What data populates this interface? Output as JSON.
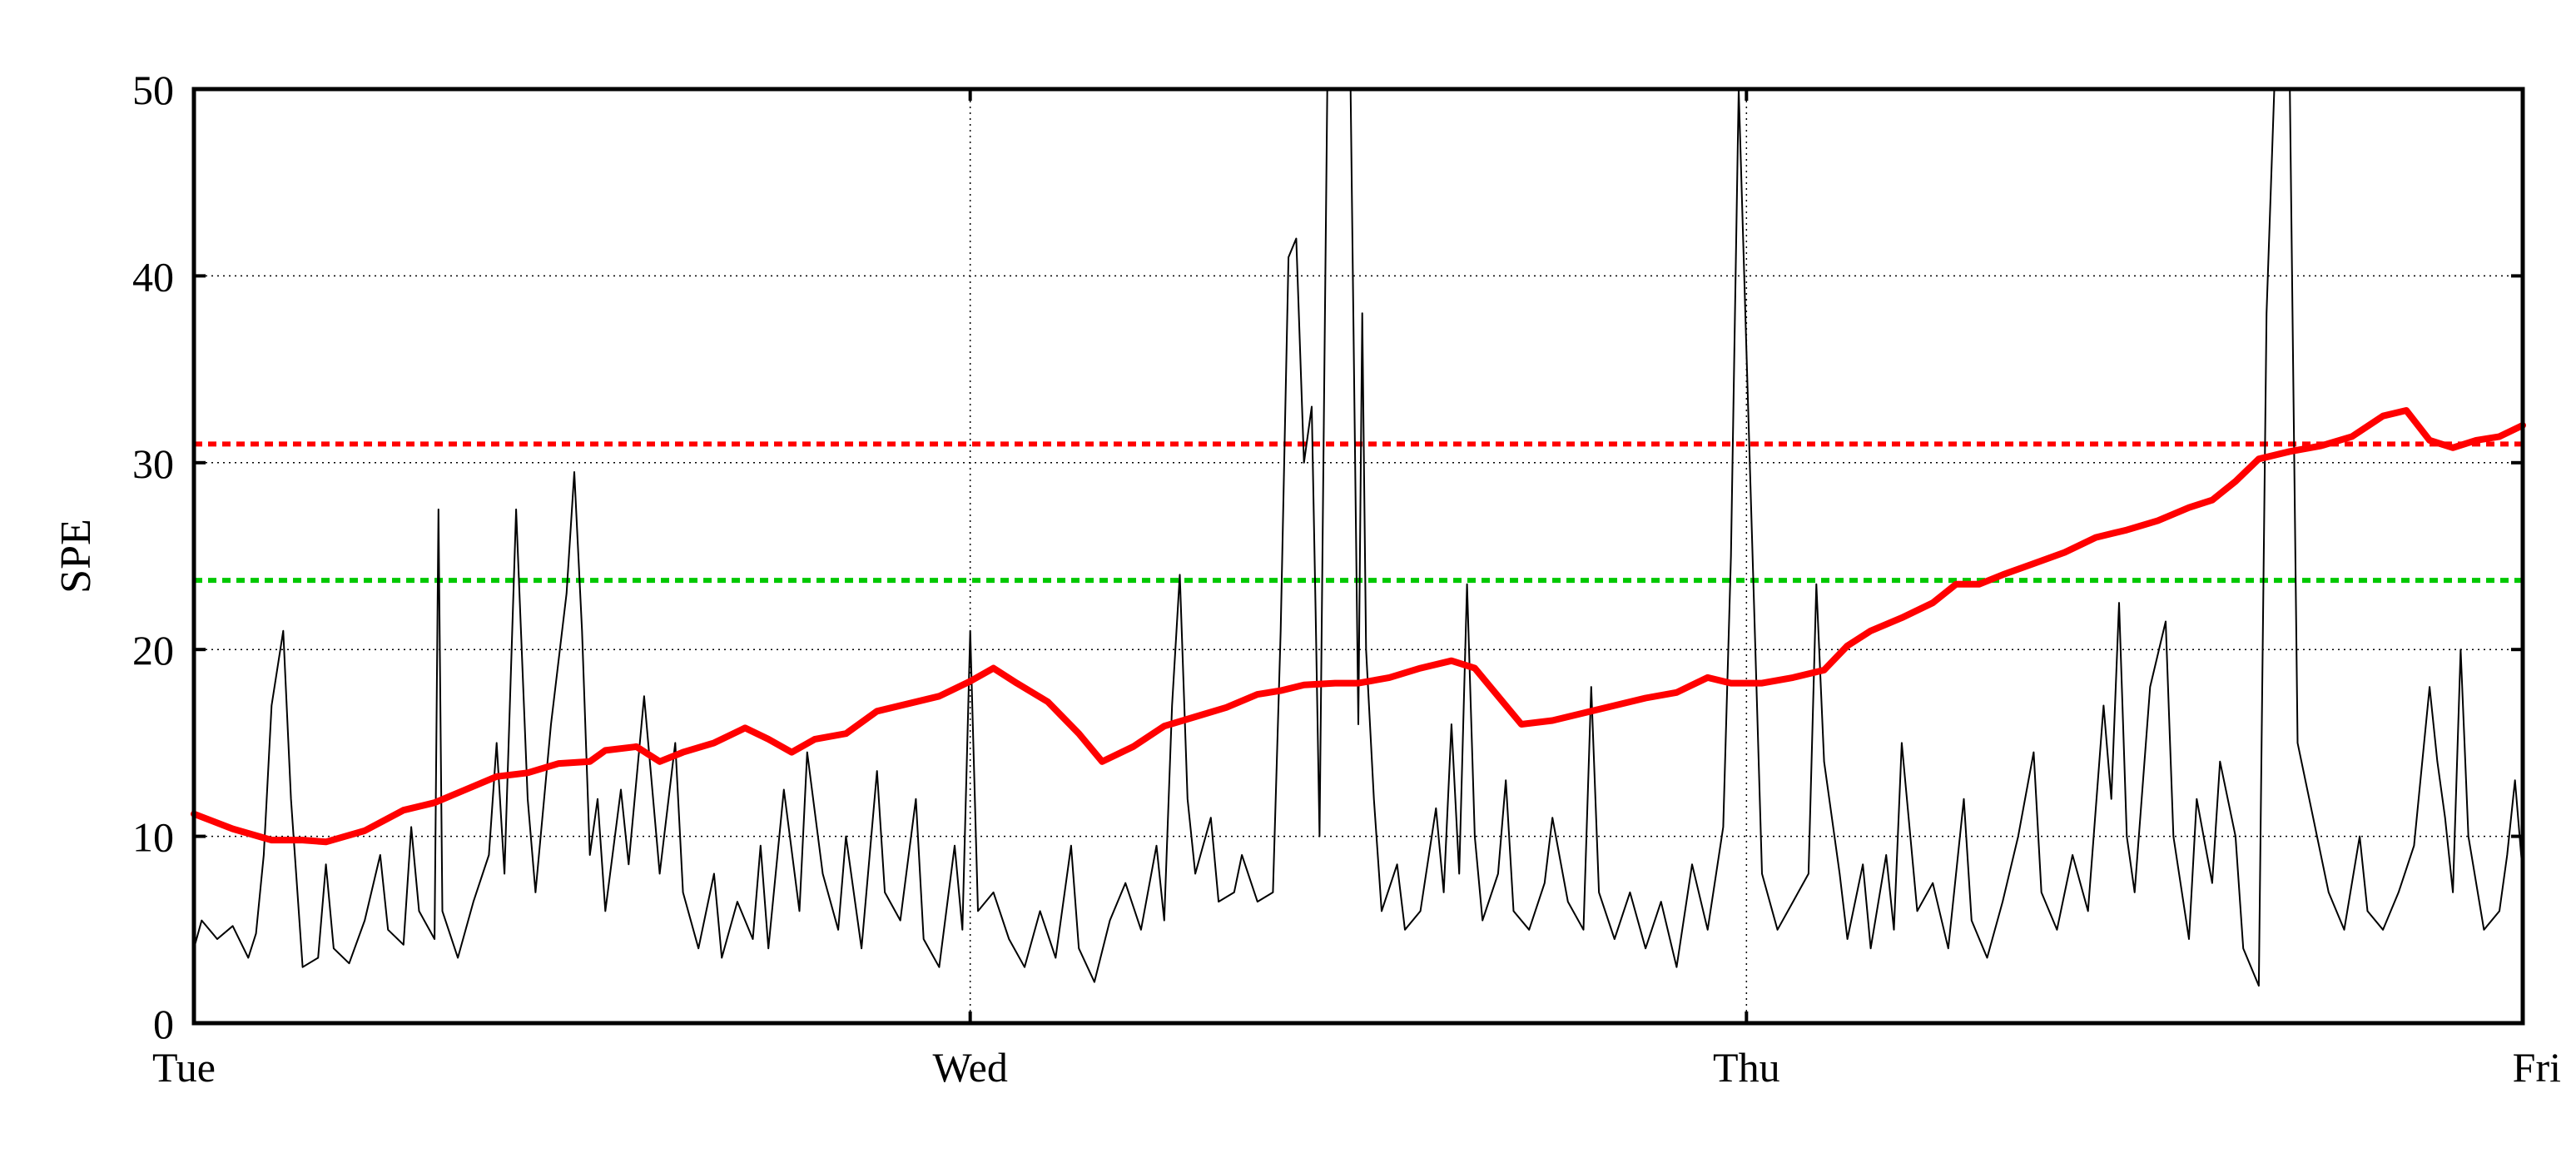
{
  "chart_data": {
    "type": "line",
    "title": "",
    "xlabel": "",
    "ylabel": "SPE",
    "xlim": [
      0,
      3
    ],
    "ylim": [
      0,
      50
    ],
    "x_ticks": [
      {
        "value": 0,
        "label": "Tue"
      },
      {
        "value": 1,
        "label": "Wed"
      },
      {
        "value": 2,
        "label": "Thu"
      },
      {
        "value": 3,
        "label": "Fri"
      }
    ],
    "y_ticks": [
      0,
      10,
      20,
      30,
      40,
      50
    ],
    "grid": "dotted",
    "thresholds": [
      {
        "y": 31.0,
        "color": "#ff0000",
        "style": "dashed"
      },
      {
        "y": 23.7,
        "color": "#00c800",
        "style": "dashed"
      }
    ],
    "series": [
      {
        "color": "#000000",
        "style": "thin",
        "points": [
          [
            0.0,
            4.0
          ],
          [
            0.01,
            5.5
          ],
          [
            0.03,
            4.5
          ],
          [
            0.05,
            5.2
          ],
          [
            0.07,
            3.5
          ],
          [
            0.08,
            4.8
          ],
          [
            0.09,
            9.0
          ],
          [
            0.1,
            17.0
          ],
          [
            0.115,
            21.0
          ],
          [
            0.125,
            12.0
          ],
          [
            0.14,
            3.0
          ],
          [
            0.16,
            3.5
          ],
          [
            0.17,
            8.5
          ],
          [
            0.18,
            4.0
          ],
          [
            0.2,
            3.2
          ],
          [
            0.22,
            5.5
          ],
          [
            0.24,
            9.0
          ],
          [
            0.25,
            5.0
          ],
          [
            0.27,
            4.2
          ],
          [
            0.28,
            10.5
          ],
          [
            0.29,
            6.0
          ],
          [
            0.31,
            4.5
          ],
          [
            0.315,
            27.5
          ],
          [
            0.32,
            6.0
          ],
          [
            0.34,
            3.5
          ],
          [
            0.36,
            6.5
          ],
          [
            0.38,
            9.0
          ],
          [
            0.39,
            15.0
          ],
          [
            0.4,
            8.0
          ],
          [
            0.415,
            27.5
          ],
          [
            0.43,
            12.0
          ],
          [
            0.44,
            7.0
          ],
          [
            0.46,
            16.0
          ],
          [
            0.48,
            23.0
          ],
          [
            0.49,
            29.5
          ],
          [
            0.5,
            21.0
          ],
          [
            0.51,
            9.0
          ],
          [
            0.52,
            12.0
          ],
          [
            0.53,
            6.0
          ],
          [
            0.55,
            12.5
          ],
          [
            0.56,
            8.5
          ],
          [
            0.58,
            17.5
          ],
          [
            0.6,
            8.0
          ],
          [
            0.62,
            15.0
          ],
          [
            0.63,
            7.0
          ],
          [
            0.65,
            4.0
          ],
          [
            0.67,
            8.0
          ],
          [
            0.68,
            3.5
          ],
          [
            0.7,
            6.5
          ],
          [
            0.72,
            4.5
          ],
          [
            0.73,
            9.5
          ],
          [
            0.74,
            4.0
          ],
          [
            0.76,
            12.5
          ],
          [
            0.78,
            6.0
          ],
          [
            0.79,
            14.5
          ],
          [
            0.81,
            8.0
          ],
          [
            0.83,
            5.0
          ],
          [
            0.84,
            10.0
          ],
          [
            0.86,
            4.0
          ],
          [
            0.88,
            13.5
          ],
          [
            0.89,
            7.0
          ],
          [
            0.91,
            5.5
          ],
          [
            0.93,
            12.0
          ],
          [
            0.94,
            4.5
          ],
          [
            0.96,
            3.0
          ],
          [
            0.98,
            9.5
          ],
          [
            0.99,
            5.0
          ],
          [
            1.0,
            21.0
          ],
          [
            1.01,
            6.0
          ],
          [
            1.03,
            7.0
          ],
          [
            1.05,
            4.5
          ],
          [
            1.07,
            3.0
          ],
          [
            1.09,
            6.0
          ],
          [
            1.11,
            3.5
          ],
          [
            1.13,
            9.5
          ],
          [
            1.14,
            4.0
          ],
          [
            1.16,
            2.2
          ],
          [
            1.18,
            5.5
          ],
          [
            1.2,
            7.5
          ],
          [
            1.22,
            5.0
          ],
          [
            1.24,
            9.5
          ],
          [
            1.25,
            5.5
          ],
          [
            1.26,
            17.0
          ],
          [
            1.27,
            24.0
          ],
          [
            1.28,
            12.0
          ],
          [
            1.29,
            8.0
          ],
          [
            1.31,
            11.0
          ],
          [
            1.32,
            6.5
          ],
          [
            1.34,
            7.0
          ],
          [
            1.35,
            9.0
          ],
          [
            1.37,
            6.5
          ],
          [
            1.39,
            7.0
          ],
          [
            1.4,
            21.0
          ],
          [
            1.41,
            41.0
          ],
          [
            1.42,
            42.0
          ],
          [
            1.43,
            30.0
          ],
          [
            1.44,
            33.0
          ],
          [
            1.445,
            22.0
          ],
          [
            1.45,
            10.0
          ],
          [
            1.46,
            50.0
          ],
          [
            1.48,
            50.0
          ],
          [
            1.49,
            50.0
          ],
          [
            1.5,
            16.0
          ],
          [
            1.505,
            38.0
          ],
          [
            1.51,
            20.0
          ],
          [
            1.52,
            12.0
          ],
          [
            1.53,
            6.0
          ],
          [
            1.55,
            8.5
          ],
          [
            1.56,
            5.0
          ],
          [
            1.58,
            6.0
          ],
          [
            1.6,
            11.5
          ],
          [
            1.61,
            7.0
          ],
          [
            1.62,
            16.0
          ],
          [
            1.63,
            8.0
          ],
          [
            1.64,
            23.5
          ],
          [
            1.65,
            10.0
          ],
          [
            1.66,
            5.5
          ],
          [
            1.68,
            8.0
          ],
          [
            1.69,
            13.0
          ],
          [
            1.7,
            6.0
          ],
          [
            1.72,
            5.0
          ],
          [
            1.74,
            7.5
          ],
          [
            1.75,
            11.0
          ],
          [
            1.77,
            6.5
          ],
          [
            1.79,
            5.0
          ],
          [
            1.8,
            18.0
          ],
          [
            1.81,
            7.0
          ],
          [
            1.83,
            4.5
          ],
          [
            1.85,
            7.0
          ],
          [
            1.87,
            4.0
          ],
          [
            1.89,
            6.5
          ],
          [
            1.91,
            3.0
          ],
          [
            1.93,
            8.5
          ],
          [
            1.95,
            5.0
          ],
          [
            1.97,
            10.5
          ],
          [
            1.98,
            25.0
          ],
          [
            1.99,
            50.0
          ],
          [
            2.0,
            36.0
          ],
          [
            2.01,
            22.0
          ],
          [
            2.02,
            8.0
          ],
          [
            2.04,
            5.0
          ],
          [
            2.06,
            6.5
          ],
          [
            2.08,
            8.0
          ],
          [
            2.09,
            23.5
          ],
          [
            2.1,
            14.0
          ],
          [
            2.12,
            8.0
          ],
          [
            2.13,
            4.5
          ],
          [
            2.15,
            8.5
          ],
          [
            2.16,
            4.0
          ],
          [
            2.18,
            9.0
          ],
          [
            2.19,
            5.0
          ],
          [
            2.2,
            15.0
          ],
          [
            2.22,
            6.0
          ],
          [
            2.24,
            7.5
          ],
          [
            2.26,
            4.0
          ],
          [
            2.28,
            12.0
          ],
          [
            2.29,
            5.5
          ],
          [
            2.31,
            3.5
          ],
          [
            2.33,
            6.5
          ],
          [
            2.35,
            10.0
          ],
          [
            2.37,
            14.5
          ],
          [
            2.38,
            7.0
          ],
          [
            2.4,
            5.0
          ],
          [
            2.42,
            9.0
          ],
          [
            2.44,
            6.0
          ],
          [
            2.46,
            17.0
          ],
          [
            2.47,
            12.0
          ],
          [
            2.48,
            22.5
          ],
          [
            2.49,
            10.0
          ],
          [
            2.5,
            7.0
          ],
          [
            2.52,
            18.0
          ],
          [
            2.54,
            21.5
          ],
          [
            2.55,
            10.0
          ],
          [
            2.57,
            4.5
          ],
          [
            2.58,
            12.0
          ],
          [
            2.6,
            7.5
          ],
          [
            2.61,
            14.0
          ],
          [
            2.63,
            10.0
          ],
          [
            2.64,
            4.0
          ],
          [
            2.66,
            2.0
          ],
          [
            2.67,
            38.0
          ],
          [
            2.68,
            50.0
          ],
          [
            2.7,
            50.0
          ],
          [
            2.71,
            15.0
          ],
          [
            2.73,
            11.0
          ],
          [
            2.75,
            7.0
          ],
          [
            2.77,
            5.0
          ],
          [
            2.79,
            10.0
          ],
          [
            2.8,
            6.0
          ],
          [
            2.82,
            5.0
          ],
          [
            2.84,
            7.0
          ],
          [
            2.86,
            9.5
          ],
          [
            2.88,
            18.0
          ],
          [
            2.89,
            14.0
          ],
          [
            2.9,
            11.0
          ],
          [
            2.91,
            7.0
          ],
          [
            2.92,
            20.0
          ],
          [
            2.93,
            10.0
          ],
          [
            2.95,
            5.0
          ],
          [
            2.97,
            6.0
          ],
          [
            2.98,
            9.0
          ],
          [
            2.99,
            13.0
          ],
          [
            3.0,
            8.0
          ]
        ]
      },
      {
        "color": "#ff0000",
        "style": "thick",
        "points": [
          [
            0.0,
            11.2
          ],
          [
            0.05,
            10.4
          ],
          [
            0.1,
            9.8
          ],
          [
            0.14,
            9.8
          ],
          [
            0.17,
            9.7
          ],
          [
            0.22,
            10.3
          ],
          [
            0.27,
            11.4
          ],
          [
            0.31,
            11.8
          ],
          [
            0.35,
            12.5
          ],
          [
            0.39,
            13.2
          ],
          [
            0.43,
            13.4
          ],
          [
            0.47,
            13.9
          ],
          [
            0.51,
            14.0
          ],
          [
            0.53,
            14.6
          ],
          [
            0.57,
            14.8
          ],
          [
            0.6,
            14.0
          ],
          [
            0.63,
            14.5
          ],
          [
            0.67,
            15.0
          ],
          [
            0.71,
            15.8
          ],
          [
            0.74,
            15.2
          ],
          [
            0.77,
            14.5
          ],
          [
            0.8,
            15.2
          ],
          [
            0.84,
            15.5
          ],
          [
            0.88,
            16.7
          ],
          [
            0.92,
            17.1
          ],
          [
            0.96,
            17.5
          ],
          [
            1.0,
            18.3
          ],
          [
            1.03,
            19.0
          ],
          [
            1.06,
            18.2
          ],
          [
            1.1,
            17.2
          ],
          [
            1.14,
            15.5
          ],
          [
            1.17,
            14.0
          ],
          [
            1.21,
            14.8
          ],
          [
            1.25,
            15.9
          ],
          [
            1.29,
            16.4
          ],
          [
            1.33,
            16.9
          ],
          [
            1.37,
            17.6
          ],
          [
            1.4,
            17.8
          ],
          [
            1.43,
            18.1
          ],
          [
            1.47,
            18.2
          ],
          [
            1.5,
            18.2
          ],
          [
            1.54,
            18.5
          ],
          [
            1.58,
            19.0
          ],
          [
            1.62,
            19.4
          ],
          [
            1.65,
            19.0
          ],
          [
            1.68,
            17.5
          ],
          [
            1.71,
            16.0
          ],
          [
            1.75,
            16.2
          ],
          [
            1.79,
            16.6
          ],
          [
            1.83,
            17.0
          ],
          [
            1.87,
            17.4
          ],
          [
            1.91,
            17.7
          ],
          [
            1.95,
            18.5
          ],
          [
            1.98,
            18.2
          ],
          [
            2.02,
            18.2
          ],
          [
            2.06,
            18.5
          ],
          [
            2.1,
            18.9
          ],
          [
            2.13,
            20.2
          ],
          [
            2.16,
            21.0
          ],
          [
            2.2,
            21.7
          ],
          [
            2.24,
            22.5
          ],
          [
            2.27,
            23.5
          ],
          [
            2.3,
            23.5
          ],
          [
            2.33,
            24.0
          ],
          [
            2.37,
            24.6
          ],
          [
            2.41,
            25.2
          ],
          [
            2.45,
            26.0
          ],
          [
            2.49,
            26.4
          ],
          [
            2.53,
            26.9
          ],
          [
            2.57,
            27.6
          ],
          [
            2.6,
            28.0
          ],
          [
            2.63,
            29.0
          ],
          [
            2.66,
            30.2
          ],
          [
            2.7,
            30.6
          ],
          [
            2.74,
            30.9
          ],
          [
            2.78,
            31.4
          ],
          [
            2.82,
            32.5
          ],
          [
            2.85,
            32.8
          ],
          [
            2.88,
            31.2
          ],
          [
            2.91,
            30.8
          ],
          [
            2.94,
            31.2
          ],
          [
            2.97,
            31.4
          ],
          [
            3.0,
            32.0
          ]
        ]
      }
    ]
  }
}
